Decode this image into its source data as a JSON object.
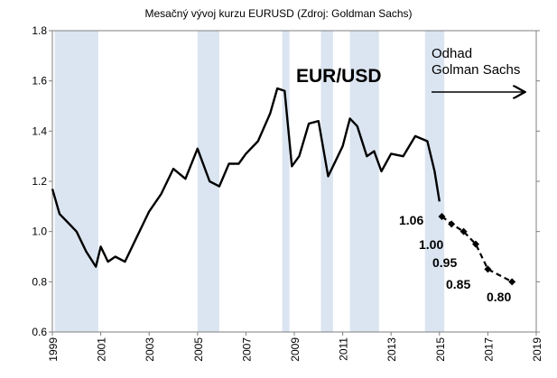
{
  "chart_data": {
    "type": "line",
    "title": "Mesačný vývoj kurzu EURUSD (Zdroj: Goldman Sachs)",
    "series_label": "EUR/USD",
    "xlim": [
      1999,
      2019
    ],
    "ylim": [
      0.6,
      1.8
    ],
    "x_ticks": [
      1999,
      2001,
      2003,
      2005,
      2007,
      2009,
      2011,
      2013,
      2015,
      2017,
      2019
    ],
    "y_ticks": [
      "0.6",
      "0.8",
      "1.0",
      "1.2",
      "1.4",
      "1.6",
      "1.8"
    ],
    "grid": false,
    "shaded_periods": [
      [
        1999.1,
        2000.9
      ],
      [
        2005.0,
        2005.9
      ],
      [
        2008.5,
        2008.8
      ],
      [
        2010.1,
        2010.6
      ],
      [
        2011.3,
        2012.5
      ],
      [
        2014.4,
        2015.2
      ]
    ],
    "series": [
      {
        "style": "solid",
        "x": [
          1999.0,
          1999.3,
          1999.6,
          2000.0,
          2000.4,
          2000.8,
          2001.0,
          2001.3,
          2001.6,
          2002.0,
          2002.5,
          2003.0,
          2003.5,
          2004.0,
          2004.5,
          2005.0,
          2005.5,
          2005.9,
          2006.3,
          2006.7,
          2007.0,
          2007.5,
          2008.0,
          2008.3,
          2008.6,
          2008.9,
          2009.2,
          2009.6,
          2010.0,
          2010.4,
          2010.7,
          2011.0,
          2011.3,
          2011.6,
          2012.0,
          2012.3,
          2012.6,
          2013.0,
          2013.5,
          2014.0,
          2014.5,
          2014.8,
          2015.0
        ],
        "y": [
          1.17,
          1.07,
          1.04,
          1.0,
          0.92,
          0.86,
          0.94,
          0.88,
          0.9,
          0.88,
          0.98,
          1.08,
          1.15,
          1.25,
          1.21,
          1.33,
          1.2,
          1.18,
          1.27,
          1.27,
          1.31,
          1.36,
          1.47,
          1.57,
          1.56,
          1.26,
          1.3,
          1.43,
          1.44,
          1.22,
          1.28,
          1.34,
          1.45,
          1.42,
          1.3,
          1.32,
          1.24,
          1.31,
          1.3,
          1.38,
          1.36,
          1.24,
          1.12
        ]
      },
      {
        "style": "dashed",
        "markers": "diamond",
        "x": [
          2015.1,
          2015.5,
          2016.0,
          2016.5,
          2017.0,
          2018.0
        ],
        "y": [
          1.06,
          1.03,
          1.0,
          0.95,
          0.85,
          0.8
        ]
      }
    ],
    "point_labels": [
      "1.06",
      "1.00",
      "0.95",
      "0.85",
      "0.80"
    ],
    "annotation": "Odhad\nGolman Sachs"
  }
}
